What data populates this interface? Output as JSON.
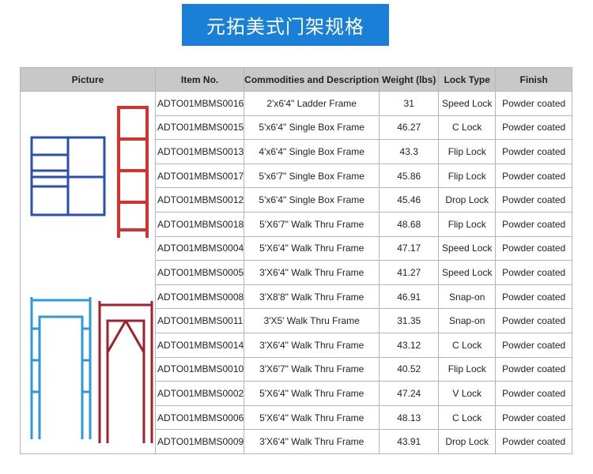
{
  "title": "元拓美式门架规格",
  "headers": [
    "Picture",
    "Item No.",
    "Commodities and Description",
    "Weight  (lbs)",
    "Lock Type",
    "Finish"
  ],
  "rows": [
    [
      "ADTO01MBMS0016",
      "2'x6'4\" Ladder Frame",
      "31",
      "Speed Lock",
      "Powder coated"
    ],
    [
      "ADTO01MBMS0015",
      "5'x6'4\" Single Box Frame",
      "46.27",
      "C Lock",
      "Powder coated"
    ],
    [
      "ADTO01MBMS0013",
      "4'x6'4\" Single Box Frame",
      "43.3",
      "Flip Lock",
      "Powder coated"
    ],
    [
      "ADTO01MBMS0017",
      "5'x6'7\" Single Box Frame",
      "45.86",
      "Flip Lock",
      "Powder coated"
    ],
    [
      "ADTO01MBMS0012",
      "5'x6'4\" Single Box Frame",
      "45.46",
      "Drop Lock",
      "Powder coated"
    ],
    [
      "ADTO01MBMS0018",
      "5'X6'7\"  Walk Thru Frame",
      "48.68",
      "Flip Lock",
      "Powder coated"
    ],
    [
      "ADTO01MBMS0004",
      "5'X6'4\"  Walk Thru Frame",
      "47.17",
      "Speed Lock",
      "Powder coated"
    ],
    [
      "ADTO01MBMS0005",
      "3'X6'4\"  Walk Thru Frame",
      "41.27",
      "Speed Lock",
      "Powder coated"
    ],
    [
      "ADTO01MBMS0008",
      "3'X8'8\" Walk Thru Frame",
      "46.91",
      "Snap-on",
      "Powder coated"
    ],
    [
      "ADTO01MBMS0011",
      "3'X5'  Walk Thru Frame",
      "31.35",
      "Snap-on",
      "Powder coated"
    ],
    [
      "ADTO01MBMS0014",
      "3'X6'4\"  Walk Thru Frame",
      "43.12",
      "C Lock",
      "Powder coated"
    ],
    [
      "ADTO01MBMS0010",
      "3'X6'7\"  Walk Thru Frame",
      "40.52",
      "Flip Lock",
      "Powder coated"
    ],
    [
      "ADTO01MBMS0002",
      "5'X6'4\"  Walk Thru Frame",
      "47.24",
      "V Lock",
      "Powder coated"
    ],
    [
      "ADTO01MBMS0006",
      "5'X6'4\"  Walk Thru Frame",
      "48.13",
      "C Lock",
      "Powder coated"
    ],
    [
      "ADTO01MBMS0009",
      "3'X6'4\"  Walk Thru Frame",
      "43.91",
      "Drop Lock",
      "Powder coated"
    ]
  ],
  "colors": {
    "banner": "#1a7fd6",
    "header_bg": "#c8c8c8",
    "frame_blue": "#2a4fb0",
    "frame_red": "#d63030",
    "frame_lightblue": "#2c9ad8",
    "frame_darkred": "#a0202c"
  }
}
